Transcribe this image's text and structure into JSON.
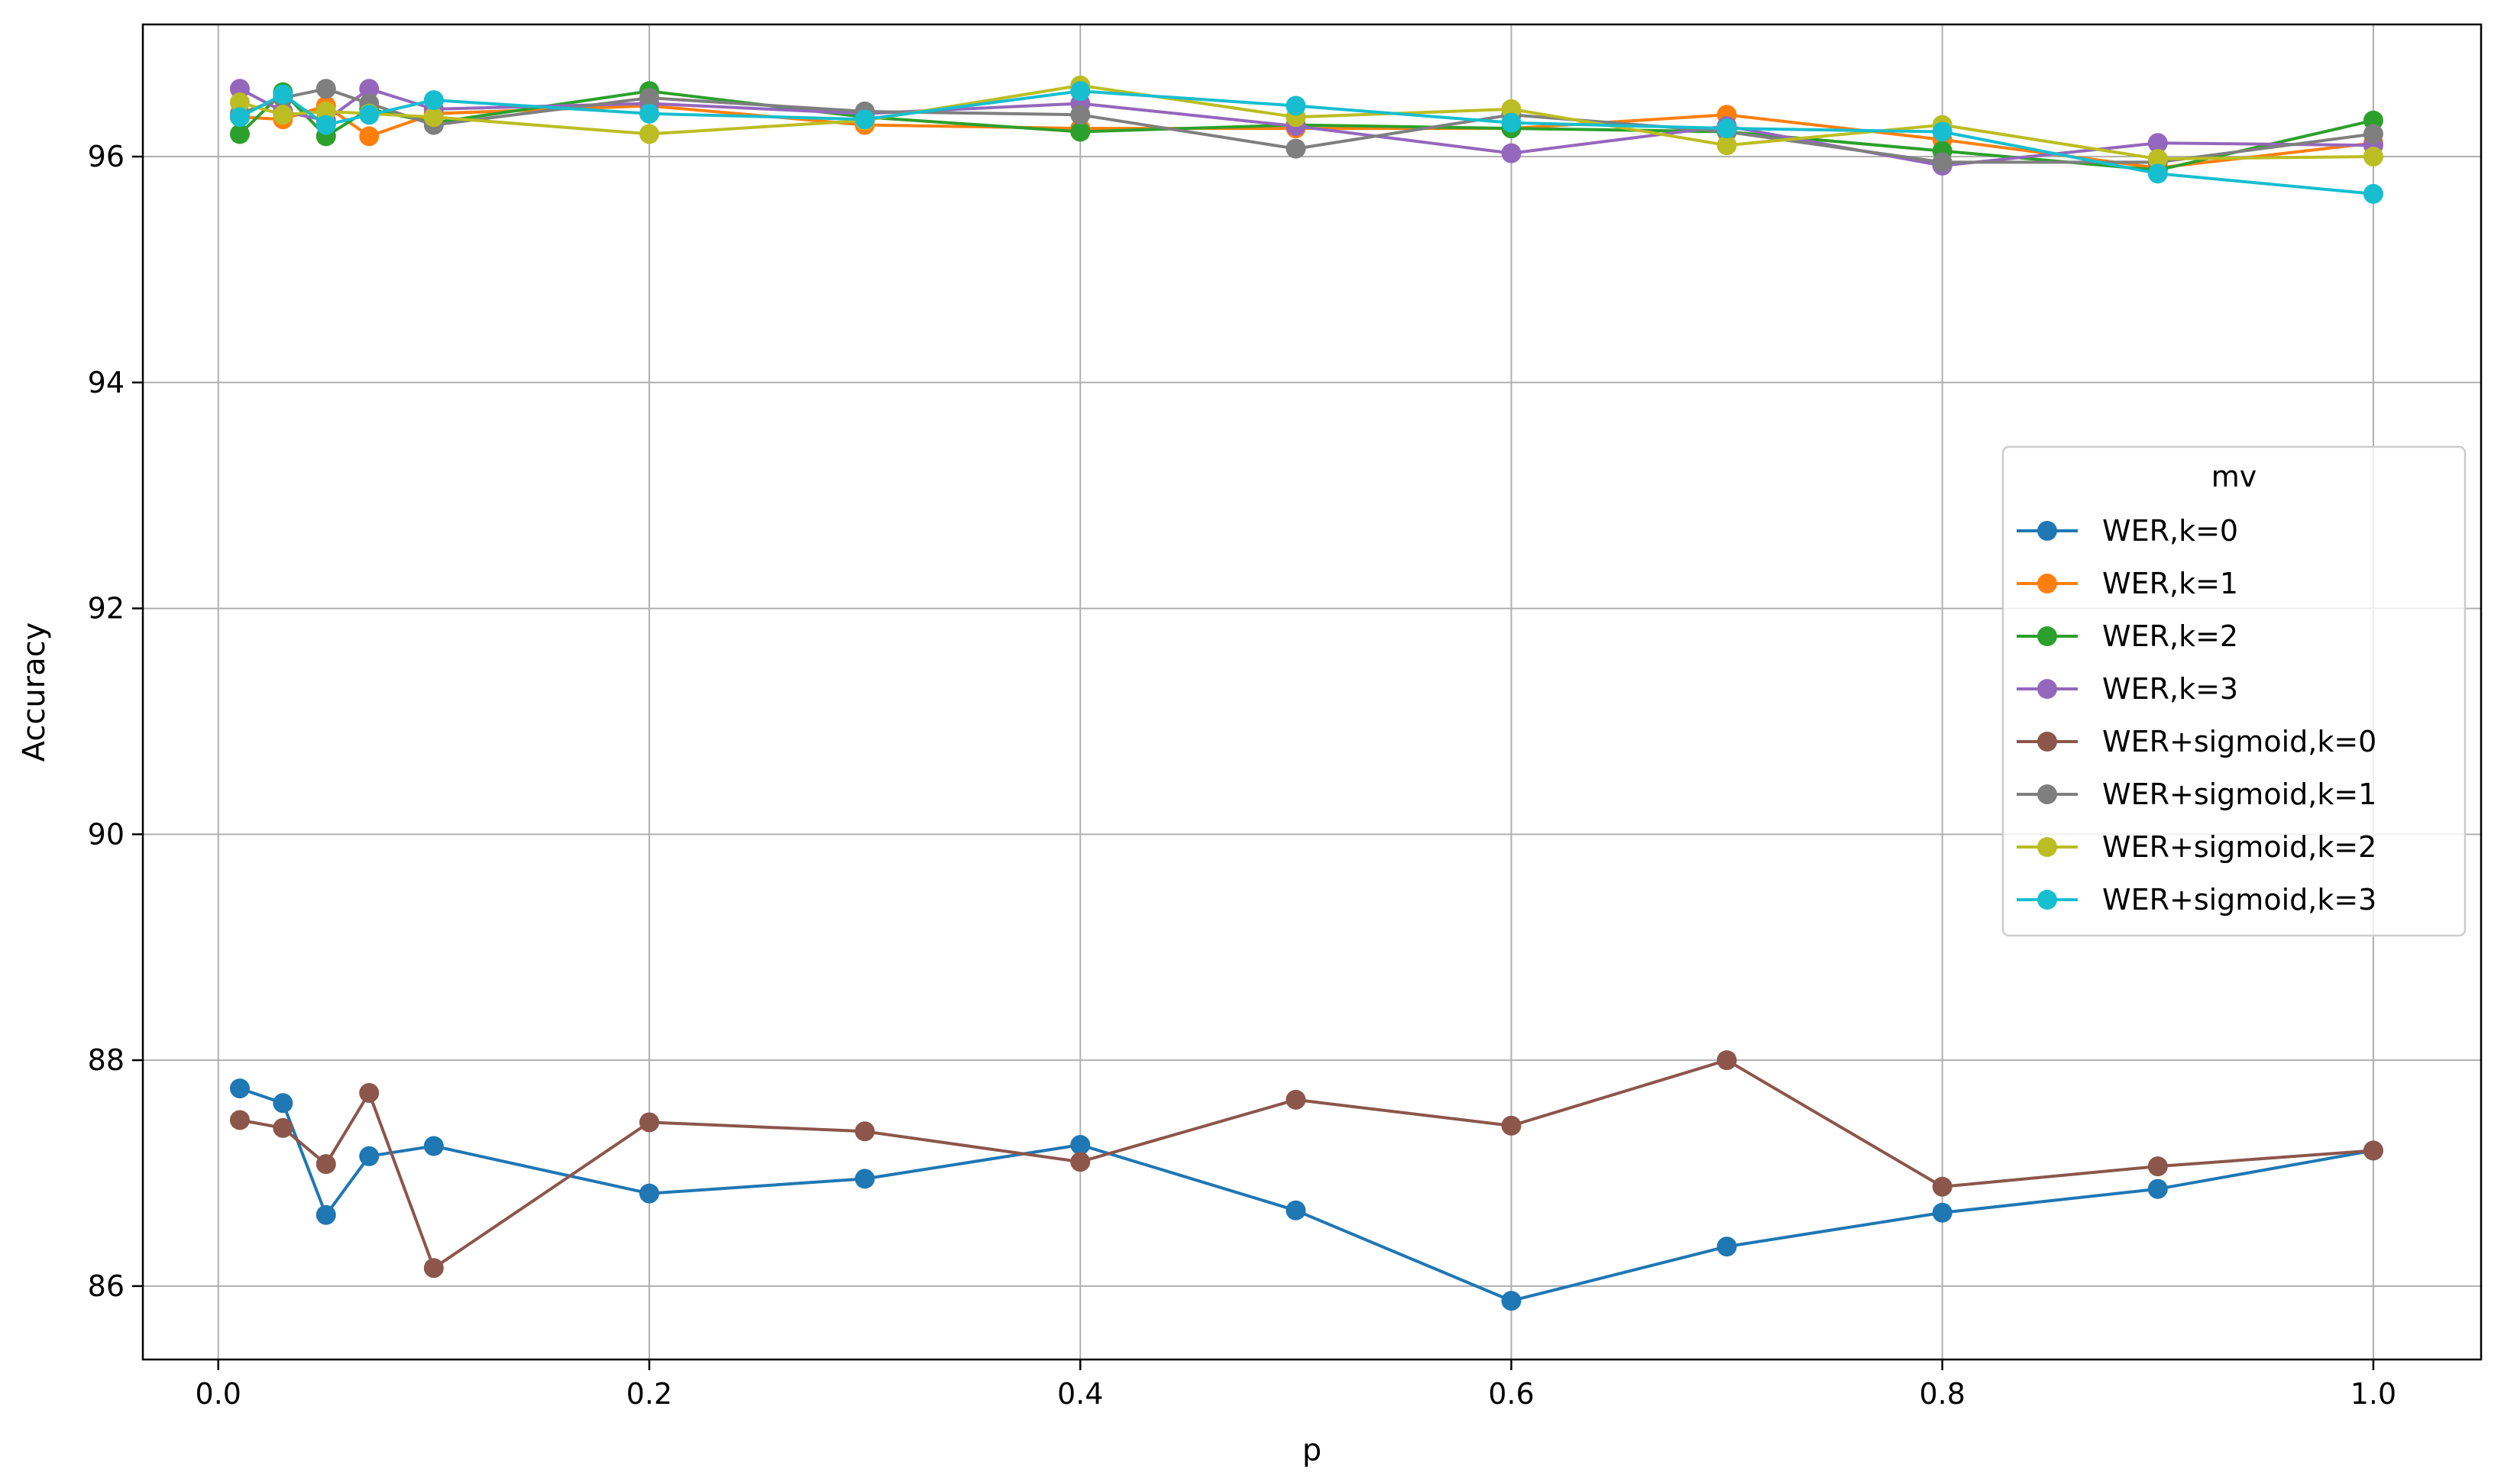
{
  "chart_data": {
    "type": "line",
    "xlabel": "p",
    "ylabel": "Accuracy",
    "xlim": [
      -0.035,
      1.05
    ],
    "ylim": [
      85.35,
      97.17
    ],
    "xticks": [
      0.0,
      0.2,
      0.4,
      0.6,
      0.8,
      1.0
    ],
    "xtick_labels": [
      "0.0",
      "0.2",
      "0.4",
      "0.6",
      "0.8",
      "1.0"
    ],
    "yticks": [
      86,
      88,
      90,
      92,
      94,
      96
    ],
    "ytick_labels": [
      "86",
      "88",
      "90",
      "92",
      "94",
      "96"
    ],
    "grid": true,
    "legend": {
      "title": "mv",
      "placement": "center-right"
    },
    "x": [
      0.01,
      0.03,
      0.05,
      0.07,
      0.1,
      0.2,
      0.3,
      0.4,
      0.5,
      0.6,
      0.7,
      0.8,
      0.9,
      1.0
    ],
    "series": [
      {
        "name": "WER,k=0",
        "color": "#1f77b4",
        "values": [
          87.75,
          87.62,
          86.63,
          87.15,
          87.24,
          86.82,
          86.95,
          87.25,
          86.67,
          85.87,
          86.35,
          86.65,
          86.86,
          87.2
        ]
      },
      {
        "name": "WER,k=1",
        "color": "#ff7f0e",
        "values": [
          96.35,
          96.33,
          96.45,
          96.18,
          96.38,
          96.45,
          96.28,
          96.25,
          96.25,
          96.25,
          96.37,
          96.15,
          95.9,
          96.12
        ]
      },
      {
        "name": "WER,k=2",
        "color": "#2ca02c",
        "values": [
          96.2,
          96.57,
          96.18,
          96.42,
          96.3,
          96.58,
          96.35,
          96.22,
          96.28,
          96.25,
          96.22,
          96.05,
          95.88,
          96.32
        ]
      },
      {
        "name": "WER,k=3",
        "color": "#9467bd",
        "values": [
          96.6,
          96.4,
          96.32,
          96.6,
          96.42,
          96.47,
          96.38,
          96.47,
          96.27,
          96.03,
          96.27,
          95.92,
          96.12,
          96.1
        ]
      },
      {
        "name": "WER+sigmoid,k=0",
        "color": "#8c564b",
        "values": [
          87.47,
          87.4,
          87.08,
          87.71,
          86.16,
          87.45,
          87.37,
          87.1,
          87.65,
          87.42,
          88.0,
          86.88,
          87.06,
          87.2
        ]
      },
      {
        "name": "WER+sigmoid,k=1",
        "color": "#7f7f7f",
        "values": [
          96.38,
          96.52,
          96.6,
          96.47,
          96.28,
          96.52,
          96.4,
          96.37,
          96.07,
          96.37,
          96.22,
          95.95,
          95.95,
          96.2
        ]
      },
      {
        "name": "WER+sigmoid,k=2",
        "color": "#bcbd22",
        "values": [
          96.48,
          96.37,
          96.4,
          96.38,
          96.35,
          96.2,
          96.32,
          96.63,
          96.35,
          96.42,
          96.1,
          96.28,
          95.98,
          96.0
        ]
      },
      {
        "name": "WER+sigmoid,k=3",
        "color": "#17becf",
        "values": [
          96.35,
          96.55,
          96.28,
          96.37,
          96.5,
          96.38,
          96.33,
          96.58,
          96.45,
          96.3,
          96.25,
          96.22,
          95.85,
          95.67
        ]
      }
    ]
  }
}
